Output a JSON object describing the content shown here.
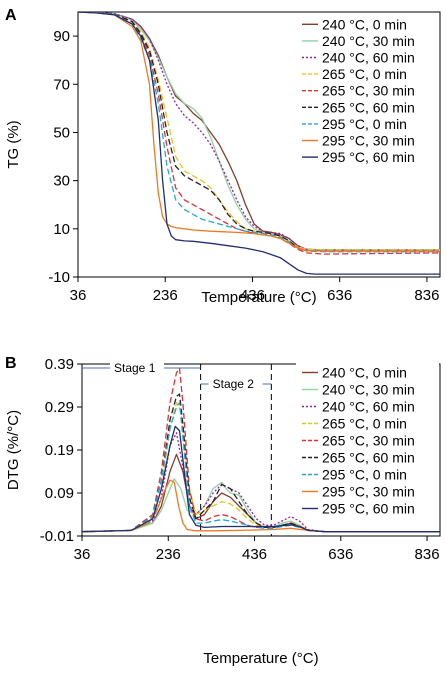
{
  "panel_letters": [
    "A",
    "B"
  ],
  "colors": {
    "240 °C, 0 min": "#7f3f2f",
    "240 °C, 30 min": "#8fd3a0",
    "240 °C, 60 min": "#a01ab0",
    "265 °C, 0 min": "#f0c020",
    "265 °C, 30 min": "#e03030",
    "265 °C, 60 min": "#222222",
    "295 °C, 0 min": "#20a8d8",
    "295 °C, 30 min": "#f07820",
    "295 °C, 60 min": "#1f2f6f"
  },
  "dash_styles": {
    "240 °C, 0 min": "solid",
    "240 °C, 30 min": "solid",
    "240 °C, 60 min": "dotted",
    "265 °C, 0 min": "dashed",
    "265 °C, 30 min": "dashed",
    "265 °C, 60 min": "dashed",
    "295 °C, 0 min": "dashed",
    "295 °C, 30 min": "solid",
    "295 °C, 60 min": "solid"
  },
  "stages": [
    "Stage 1",
    "Stage 2"
  ],
  "chart_data": [
    {
      "type": "line",
      "panel": "A",
      "xlabel": "Temperature (°C)",
      "ylabel": "TG (%)",
      "xlim": [
        36,
        866
      ],
      "ylim": [
        -10,
        100
      ],
      "xticks": [
        36,
        236,
        436,
        636,
        836
      ],
      "yticks": [
        -10,
        10,
        30,
        50,
        70,
        90
      ],
      "legend_position": "top-right",
      "grid": false,
      "series": [
        {
          "name": "240 °C, 0 min",
          "x": [
            36,
            80,
            120,
            160,
            180,
            200,
            220,
            240,
            260,
            280,
            300,
            320,
            340,
            360,
            380,
            400,
            420,
            440,
            460,
            480,
            500,
            520,
            540,
            560,
            600,
            700,
            866
          ],
          "y": [
            100,
            99.8,
            99.2,
            97,
            94,
            89,
            82,
            73,
            65,
            62,
            58,
            55,
            50,
            45,
            38,
            30,
            20,
            12,
            9,
            8.5,
            7.5,
            6,
            3,
            1.5,
            1.2,
            1.2,
            1.2
          ]
        },
        {
          "name": "240 °C, 30 min",
          "x": [
            36,
            80,
            120,
            160,
            180,
            200,
            220,
            240,
            260,
            280,
            300,
            320,
            340,
            360,
            380,
            400,
            420,
            440,
            460,
            480,
            500,
            520,
            540,
            560,
            600,
            700,
            866
          ],
          "y": [
            100,
            99.8,
            99.2,
            96.5,
            93,
            88,
            81,
            73,
            66,
            62,
            60,
            56,
            48,
            38,
            28,
            20,
            14,
            10,
            8.5,
            8,
            7,
            5,
            2.5,
            1.5,
            1.3,
            1.3,
            1.3
          ]
        },
        {
          "name": "240 °C, 60 min",
          "x": [
            36,
            80,
            120,
            160,
            180,
            200,
            220,
            240,
            260,
            280,
            300,
            320,
            340,
            360,
            380,
            400,
            420,
            440,
            460,
            480,
            500,
            520,
            540,
            560,
            600,
            700,
            866
          ],
          "y": [
            100,
            99.8,
            99.3,
            97,
            94,
            89,
            80,
            70,
            62,
            57,
            54,
            50,
            45,
            38,
            30,
            22,
            15,
            11,
            9,
            8.5,
            8,
            6,
            3,
            1.5,
            1.2,
            1.2,
            1.2
          ]
        },
        {
          "name": "265 °C, 0 min",
          "x": [
            36,
            80,
            120,
            160,
            180,
            200,
            220,
            240,
            260,
            280,
            300,
            320,
            340,
            360,
            380,
            400,
            420,
            440,
            460,
            480,
            500,
            520,
            540,
            560,
            600,
            700,
            866
          ],
          "y": [
            100,
            99.8,
            99.1,
            96,
            92,
            85,
            72,
            56,
            40,
            34,
            32,
            30,
            27,
            22,
            17,
            13,
            10,
            9,
            8.5,
            8,
            7,
            5,
            2.5,
            1.5,
            1.2,
            1.2,
            1.2
          ]
        },
        {
          "name": "265 °C, 30 min",
          "x": [
            36,
            80,
            120,
            160,
            180,
            200,
            220,
            240,
            260,
            280,
            300,
            320,
            340,
            360,
            380,
            400,
            420,
            440,
            460,
            480,
            500,
            520,
            540,
            560,
            600,
            700,
            866
          ],
          "y": [
            100,
            99.7,
            99,
            96,
            91,
            82,
            66,
            44,
            27,
            22,
            20,
            18,
            16,
            14,
            12,
            10,
            9,
            8,
            7.5,
            7,
            6,
            4,
            1.5,
            0,
            -0.5,
            -0.3,
            0
          ]
        },
        {
          "name": "265 °C, 60 min",
          "x": [
            36,
            80,
            120,
            160,
            180,
            200,
            220,
            240,
            260,
            280,
            300,
            320,
            340,
            360,
            380,
            400,
            420,
            440,
            460,
            480,
            500,
            520,
            540,
            560,
            600,
            700,
            866
          ],
          "y": [
            100,
            99.8,
            99.1,
            96,
            91,
            84,
            70,
            50,
            36,
            32,
            30,
            28,
            26,
            22,
            16,
            12,
            10,
            9,
            8.5,
            8,
            7,
            5,
            2,
            1,
            0.8,
            0.8,
            0.8
          ]
        },
        {
          "name": "295 °C, 0 min",
          "x": [
            36,
            80,
            120,
            160,
            180,
            200,
            220,
            240,
            260,
            280,
            300,
            320,
            340,
            360,
            380,
            400,
            420,
            440,
            460,
            480,
            500,
            520,
            540,
            560,
            600,
            700,
            866
          ],
          "y": [
            100,
            99.7,
            99,
            95,
            89,
            80,
            62,
            36,
            22,
            18,
            16,
            14,
            13,
            12,
            11,
            10,
            9,
            8.5,
            8,
            7.5,
            6.5,
            4.5,
            2,
            0.8,
            0.5,
            0.5,
            0.5
          ]
        },
        {
          "name": "295 °C, 30 min",
          "x": [
            36,
            80,
            120,
            160,
            180,
            200,
            210,
            220,
            230,
            240,
            250,
            260,
            280,
            300,
            340,
            400,
            440,
            480,
            500,
            520,
            540,
            560,
            600,
            700,
            866
          ],
          "y": [
            100,
            99.6,
            98.8,
            94,
            88,
            70,
            45,
            25,
            15,
            12,
            11,
            10.5,
            10,
            9.5,
            9,
            8.5,
            8,
            7,
            6,
            4,
            2,
            1,
            0.8,
            0.8,
            0.8
          ]
        },
        {
          "name": "295 °C, 60 min",
          "x": [
            36,
            80,
            120,
            160,
            180,
            200,
            220,
            230,
            240,
            250,
            260,
            280,
            300,
            340,
            380,
            420,
            460,
            500,
            520,
            540,
            560,
            580,
            620,
            700,
            866
          ],
          "y": [
            100,
            99.6,
            98.8,
            95,
            90,
            80,
            55,
            30,
            12,
            7,
            5.5,
            5,
            4.8,
            4,
            3,
            2,
            0.5,
            -2,
            -4.5,
            -7,
            -8.5,
            -8.8,
            -8.8,
            -8.8,
            -8.8
          ]
        }
      ]
    },
    {
      "type": "line",
      "panel": "B",
      "xlabel": "Temperature (°C)",
      "ylabel": "DTG (%/°C)",
      "xlim": [
        36,
        866
      ],
      "ylim": [
        -0.01,
        0.39
      ],
      "xticks": [
        36,
        236,
        436,
        636,
        836
      ],
      "yticks": [
        -0.01,
        0.09,
        0.19,
        0.29,
        0.39
      ],
      "legend_position": "top-right",
      "grid": false,
      "stage_boundaries": [
        311,
        475
      ],
      "series": [
        {
          "name": "240 °C, 0 min",
          "x": [
            36,
            150,
            200,
            220,
            240,
            255,
            270,
            285,
            300,
            320,
            340,
            360,
            380,
            400,
            420,
            440,
            460,
            480,
            500,
            520,
            540,
            560,
            600,
            866
          ],
          "y": [
            0.0,
            0.003,
            0.02,
            0.06,
            0.14,
            0.18,
            0.14,
            0.06,
            0.03,
            0.04,
            0.07,
            0.09,
            0.08,
            0.06,
            0.04,
            0.02,
            0.01,
            0.01,
            0.015,
            0.02,
            0.015,
            0.003,
            0.0,
            0.0
          ]
        },
        {
          "name": "240 °C, 30 min",
          "x": [
            36,
            150,
            200,
            220,
            240,
            250,
            265,
            280,
            300,
            320,
            340,
            360,
            370,
            380,
            400,
            420,
            440,
            460,
            480,
            500,
            520,
            540,
            560,
            600,
            866
          ],
          "y": [
            0.0,
            0.003,
            0.02,
            0.05,
            0.1,
            0.123,
            0.1,
            0.05,
            0.04,
            0.06,
            0.1,
            0.115,
            0.1,
            0.09,
            0.085,
            0.05,
            0.02,
            0.01,
            0.01,
            0.02,
            0.025,
            0.015,
            0.003,
            0.0,
            0.0
          ]
        },
        {
          "name": "240 °C, 60 min",
          "x": [
            36,
            150,
            200,
            220,
            240,
            255,
            270,
            285,
            300,
            320,
            340,
            360,
            380,
            400,
            420,
            440,
            460,
            480,
            500,
            520,
            540,
            560,
            600,
            866
          ],
          "y": [
            0.0,
            0.003,
            0.025,
            0.08,
            0.2,
            0.23,
            0.15,
            0.06,
            0.04,
            0.06,
            0.09,
            0.11,
            0.1,
            0.09,
            0.06,
            0.03,
            0.015,
            0.015,
            0.025,
            0.035,
            0.025,
            0.005,
            0.0,
            0.0
          ]
        },
        {
          "name": "265 °C, 0 min",
          "x": [
            36,
            150,
            200,
            220,
            240,
            255,
            265,
            280,
            300,
            320,
            340,
            360,
            380,
            400,
            420,
            440,
            460,
            480,
            500,
            520,
            540,
            560,
            600,
            866
          ],
          "y": [
            0.0,
            0.003,
            0.03,
            0.1,
            0.24,
            0.3,
            0.28,
            0.12,
            0.04,
            0.05,
            0.06,
            0.07,
            0.065,
            0.05,
            0.03,
            0.015,
            0.01,
            0.01,
            0.015,
            0.02,
            0.015,
            0.003,
            0.0,
            0.0
          ]
        },
        {
          "name": "265 °C, 30 min",
          "x": [
            36,
            150,
            200,
            220,
            240,
            255,
            262,
            270,
            285,
            300,
            320,
            340,
            360,
            380,
            400,
            420,
            440,
            460,
            480,
            500,
            520,
            540,
            560,
            600,
            866
          ],
          "y": [
            0.0,
            0.003,
            0.04,
            0.14,
            0.3,
            0.37,
            0.38,
            0.3,
            0.1,
            0.03,
            0.025,
            0.035,
            0.04,
            0.035,
            0.025,
            0.015,
            0.01,
            0.01,
            0.01,
            0.015,
            0.02,
            0.012,
            0.003,
            0.0,
            0.0
          ]
        },
        {
          "name": "265 °C, 60 min",
          "x": [
            36,
            150,
            200,
            220,
            240,
            255,
            262,
            270,
            285,
            300,
            320,
            340,
            360,
            380,
            400,
            420,
            440,
            460,
            480,
            500,
            520,
            540,
            560,
            600,
            866
          ],
          "y": [
            0.0,
            0.003,
            0.035,
            0.12,
            0.26,
            0.315,
            0.32,
            0.25,
            0.08,
            0.03,
            0.05,
            0.07,
            0.11,
            0.1,
            0.07,
            0.04,
            0.02,
            0.01,
            0.01,
            0.015,
            0.02,
            0.012,
            0.003,
            0.0,
            0.0
          ]
        },
        {
          "name": "295 °C, 0 min",
          "x": [
            36,
            150,
            200,
            220,
            240,
            255,
            262,
            270,
            285,
            300,
            320,
            340,
            360,
            380,
            400,
            420,
            440,
            460,
            480,
            500,
            520,
            540,
            560,
            600,
            866
          ],
          "y": [
            0.0,
            0.003,
            0.035,
            0.12,
            0.24,
            0.29,
            0.3,
            0.22,
            0.06,
            0.02,
            0.02,
            0.025,
            0.028,
            0.025,
            0.02,
            0.015,
            0.01,
            0.008,
            0.008,
            0.012,
            0.015,
            0.01,
            0.003,
            0.0,
            0.0
          ]
        },
        {
          "name": "295 °C, 30 min",
          "x": [
            36,
            150,
            190,
            210,
            225,
            240,
            250,
            260,
            270,
            280,
            300,
            340,
            400,
            480,
            520,
            560,
            600,
            866
          ],
          "y": [
            0.0,
            0.003,
            0.02,
            0.05,
            0.09,
            0.12,
            0.115,
            0.06,
            0.02,
            0.005,
            0.002,
            0.002,
            0.003,
            0.005,
            0.008,
            0.003,
            0.0,
            0.0
          ]
        },
        {
          "name": "295 °C, 60 min",
          "x": [
            36,
            150,
            200,
            220,
            240,
            252,
            262,
            272,
            285,
            300,
            320,
            360,
            400,
            440,
            480,
            500,
            520,
            540,
            560,
            600,
            866
          ],
          "y": [
            0.0,
            0.003,
            0.03,
            0.1,
            0.2,
            0.245,
            0.235,
            0.15,
            0.04,
            0.015,
            0.01,
            0.012,
            0.012,
            0.012,
            0.012,
            0.014,
            0.016,
            0.012,
            0.003,
            0.0,
            0.0
          ]
        }
      ]
    }
  ]
}
